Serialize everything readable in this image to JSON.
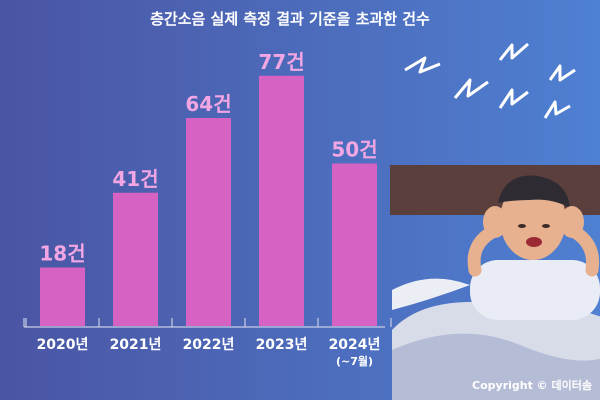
{
  "title": "층간소음 실제 측정 결과 기준을 초과한 건수",
  "copyright": "Copyright © 데이터솜",
  "colors": {
    "bar": "#d662c4",
    "value_label": "#f2a6e3",
    "background_left": "#4b57a6",
    "background_right": "#4f7fd0",
    "text": "#ffffff"
  },
  "chart_data": {
    "type": "bar",
    "title": "층간소음 실제 측정 결과 기준을 초과한 건수",
    "xlabel": "",
    "ylabel": "",
    "unit": "건",
    "categories": [
      "2020년",
      "2021년",
      "2022년",
      "2023년",
      "2024년"
    ],
    "category_notes": [
      "",
      "",
      "",
      "",
      "(~7월)"
    ],
    "values": [
      18,
      41,
      64,
      77,
      50
    ],
    "value_labels": [
      "18건",
      "41건",
      "64건",
      "77건",
      "50건"
    ],
    "ylim": [
      0,
      80
    ],
    "grid": false,
    "legend": "none"
  }
}
